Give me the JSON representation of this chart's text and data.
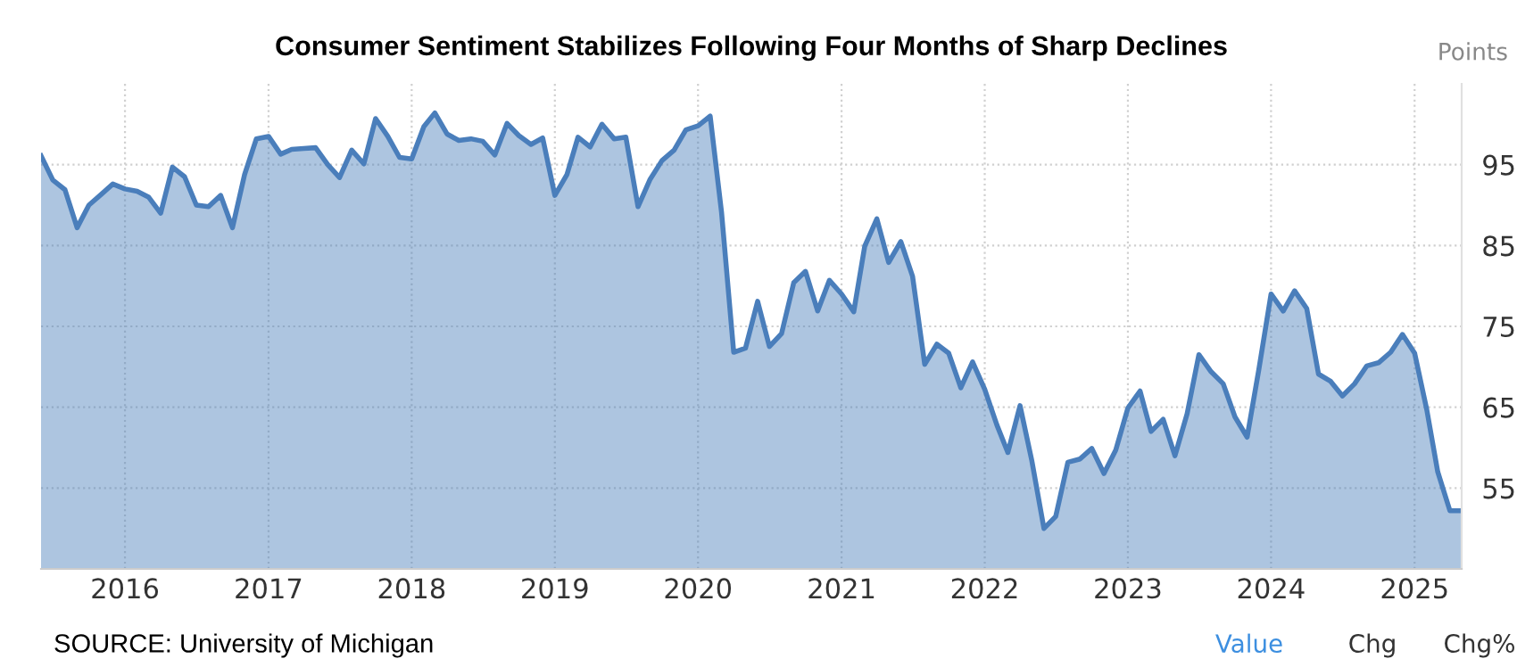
{
  "chart_data": {
    "type": "area",
    "title": "Consumer Sentiment Stabilizes Following Four Months of Sharp Declines",
    "ylabel": "Points",
    "x": [
      "2015-06",
      "2015-07",
      "2015-08",
      "2015-09",
      "2015-10",
      "2015-11",
      "2015-12",
      "2016-01",
      "2016-02",
      "2016-03",
      "2016-04",
      "2016-05",
      "2016-06",
      "2016-07",
      "2016-08",
      "2016-09",
      "2016-10",
      "2016-11",
      "2016-12",
      "2017-01",
      "2017-02",
      "2017-03",
      "2017-04",
      "2017-05",
      "2017-06",
      "2017-07",
      "2017-08",
      "2017-09",
      "2017-10",
      "2017-11",
      "2017-12",
      "2018-01",
      "2018-02",
      "2018-03",
      "2018-04",
      "2018-05",
      "2018-06",
      "2018-07",
      "2018-08",
      "2018-09",
      "2018-10",
      "2018-11",
      "2018-12",
      "2019-01",
      "2019-02",
      "2019-03",
      "2019-04",
      "2019-05",
      "2019-06",
      "2019-07",
      "2019-08",
      "2019-09",
      "2019-10",
      "2019-11",
      "2019-12",
      "2020-01",
      "2020-02",
      "2020-03",
      "2020-04",
      "2020-05",
      "2020-06",
      "2020-07",
      "2020-08",
      "2020-09",
      "2020-10",
      "2020-11",
      "2020-12",
      "2021-01",
      "2021-02",
      "2021-03",
      "2021-04",
      "2021-05",
      "2021-06",
      "2021-07",
      "2021-08",
      "2021-09",
      "2021-10",
      "2021-11",
      "2021-12",
      "2022-01",
      "2022-02",
      "2022-03",
      "2022-04",
      "2022-05",
      "2022-06",
      "2022-07",
      "2022-08",
      "2022-09",
      "2022-10",
      "2022-11",
      "2022-12",
      "2023-01",
      "2023-02",
      "2023-03",
      "2023-04",
      "2023-05",
      "2023-06",
      "2023-07",
      "2023-08",
      "2023-09",
      "2023-10",
      "2023-11",
      "2023-12",
      "2024-01",
      "2024-02",
      "2024-03",
      "2024-04",
      "2024-05",
      "2024-06",
      "2024-07",
      "2024-08",
      "2024-09",
      "2024-10",
      "2024-11",
      "2024-12",
      "2025-01",
      "2025-02",
      "2025-03",
      "2025-04",
      "2025-05"
    ],
    "series": [
      {
        "color": "#4a7ebb",
        "values": [
          96.1,
          93.1,
          91.9,
          87.2,
          90.0,
          91.3,
          92.6,
          92.0,
          91.7,
          91.0,
          89.0,
          94.7,
          93.5,
          90.0,
          89.8,
          91.2,
          87.2,
          93.8,
          98.2,
          98.5,
          96.3,
          96.9,
          97.0,
          97.1,
          95.0,
          93.4,
          96.8,
          95.1,
          100.7,
          98.5,
          95.9,
          95.7,
          99.7,
          101.4,
          98.8,
          98.0,
          98.2,
          97.9,
          96.2,
          100.1,
          98.6,
          97.5,
          98.3,
          91.2,
          93.8,
          98.4,
          97.2,
          100.0,
          98.2,
          98.4,
          89.8,
          93.2,
          95.5,
          96.8,
          99.3,
          99.8,
          101.0,
          89.1,
          71.8,
          72.3,
          78.1,
          72.5,
          74.1,
          80.4,
          81.8,
          76.9,
          80.7,
          79.0,
          76.8,
          84.9,
          88.3,
          82.9,
          85.5,
          81.2,
          70.3,
          72.8,
          71.7,
          67.4,
          70.6,
          67.2,
          62.8,
          59.4,
          65.2,
          58.4,
          50.0,
          51.5,
          58.2,
          58.6,
          59.9,
          56.8,
          59.7,
          64.9,
          67.0,
          62.0,
          63.5,
          59.0,
          64.2,
          71.5,
          69.4,
          67.9,
          63.8,
          61.3,
          69.7,
          79.0,
          76.9,
          79.4,
          77.2,
          69.1,
          68.2,
          66.4,
          67.9,
          70.1,
          70.5,
          71.8,
          74.0,
          71.7,
          64.7,
          57.0,
          52.2,
          52.2
        ]
      }
    ],
    "xlim": [
      "2015-06",
      "2025-05"
    ],
    "xticks": [
      {
        "value": "2016-01",
        "label": "2016"
      },
      {
        "value": "2017-01",
        "label": "2017"
      },
      {
        "value": "2018-01",
        "label": "2018"
      },
      {
        "value": "2019-01",
        "label": "2019"
      },
      {
        "value": "2020-01",
        "label": "2020"
      },
      {
        "value": "2021-01",
        "label": "2021"
      },
      {
        "value": "2022-01",
        "label": "2022"
      },
      {
        "value": "2023-01",
        "label": "2023"
      },
      {
        "value": "2024-01",
        "label": "2024"
      },
      {
        "value": "2025-01",
        "label": "2025"
      }
    ],
    "ylim": [
      45,
      105
    ],
    "yticks": [
      55,
      65,
      75,
      85,
      95
    ],
    "grid": true,
    "annotations": [
      "SOURCE: University of Michigan",
      "Value",
      "Chg",
      "Chg%"
    ]
  }
}
